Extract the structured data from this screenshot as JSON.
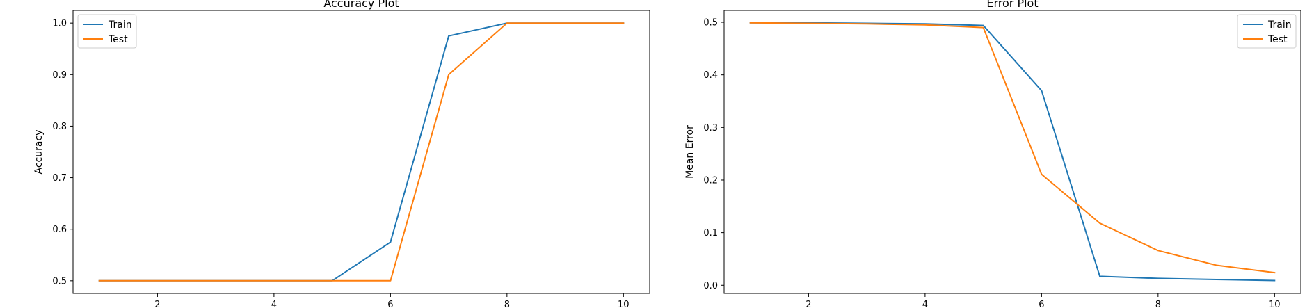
{
  "chart_data": [
    {
      "type": "line",
      "title": "Accuracy Plot",
      "xlabel": "",
      "ylabel": "Accuracy",
      "xlim": [
        0.55,
        10.45
      ],
      "ylim": [
        0.4755,
        1.0245
      ],
      "xticks": [
        2,
        4,
        6,
        8,
        10
      ],
      "yticks": [
        0.5,
        0.6,
        0.7,
        0.8,
        0.9,
        1.0
      ],
      "ytick_labels": [
        "0.5",
        "0.6",
        "0.7",
        "0.8",
        "0.9",
        "1.0"
      ],
      "grid": false,
      "legend_position": "upper-left",
      "x": [
        1,
        2,
        3,
        4,
        5,
        6,
        7,
        8,
        9,
        10
      ],
      "series": [
        {
          "name": "Train",
          "color": "#1f77b4",
          "values": [
            0.5,
            0.5,
            0.5,
            0.5,
            0.5,
            0.575,
            0.975,
            1.0,
            1.0,
            1.0
          ]
        },
        {
          "name": "Test",
          "color": "#ff7f0e",
          "values": [
            0.5,
            0.5,
            0.5,
            0.5,
            0.5,
            0.5,
            0.9,
            1.0,
            1.0,
            1.0
          ]
        }
      ]
    },
    {
      "type": "line",
      "title": "Error Plot",
      "xlabel": "",
      "ylabel": "Mean Error",
      "xlim": [
        0.55,
        10.45
      ],
      "ylim": [
        -0.0155,
        0.5225
      ],
      "xticks": [
        2,
        4,
        6,
        8,
        10
      ],
      "yticks": [
        0.0,
        0.1,
        0.2,
        0.3,
        0.4,
        0.5
      ],
      "ytick_labels": [
        "0.0",
        "0.1",
        "0.2",
        "0.3",
        "0.4",
        "0.5"
      ],
      "grid": false,
      "legend_position": "upper-right",
      "x": [
        1,
        2,
        3,
        4,
        5,
        6,
        7,
        8,
        9,
        10
      ],
      "series": [
        {
          "name": "Train",
          "color": "#1f77b4",
          "values": [
            0.499,
            0.499,
            0.498,
            0.497,
            0.494,
            0.37,
            0.017,
            0.013,
            0.011,
            0.009
          ]
        },
        {
          "name": "Test",
          "color": "#ff7f0e",
          "values": [
            0.499,
            0.498,
            0.497,
            0.495,
            0.49,
            0.211,
            0.118,
            0.066,
            0.038,
            0.024
          ]
        }
      ]
    }
  ]
}
